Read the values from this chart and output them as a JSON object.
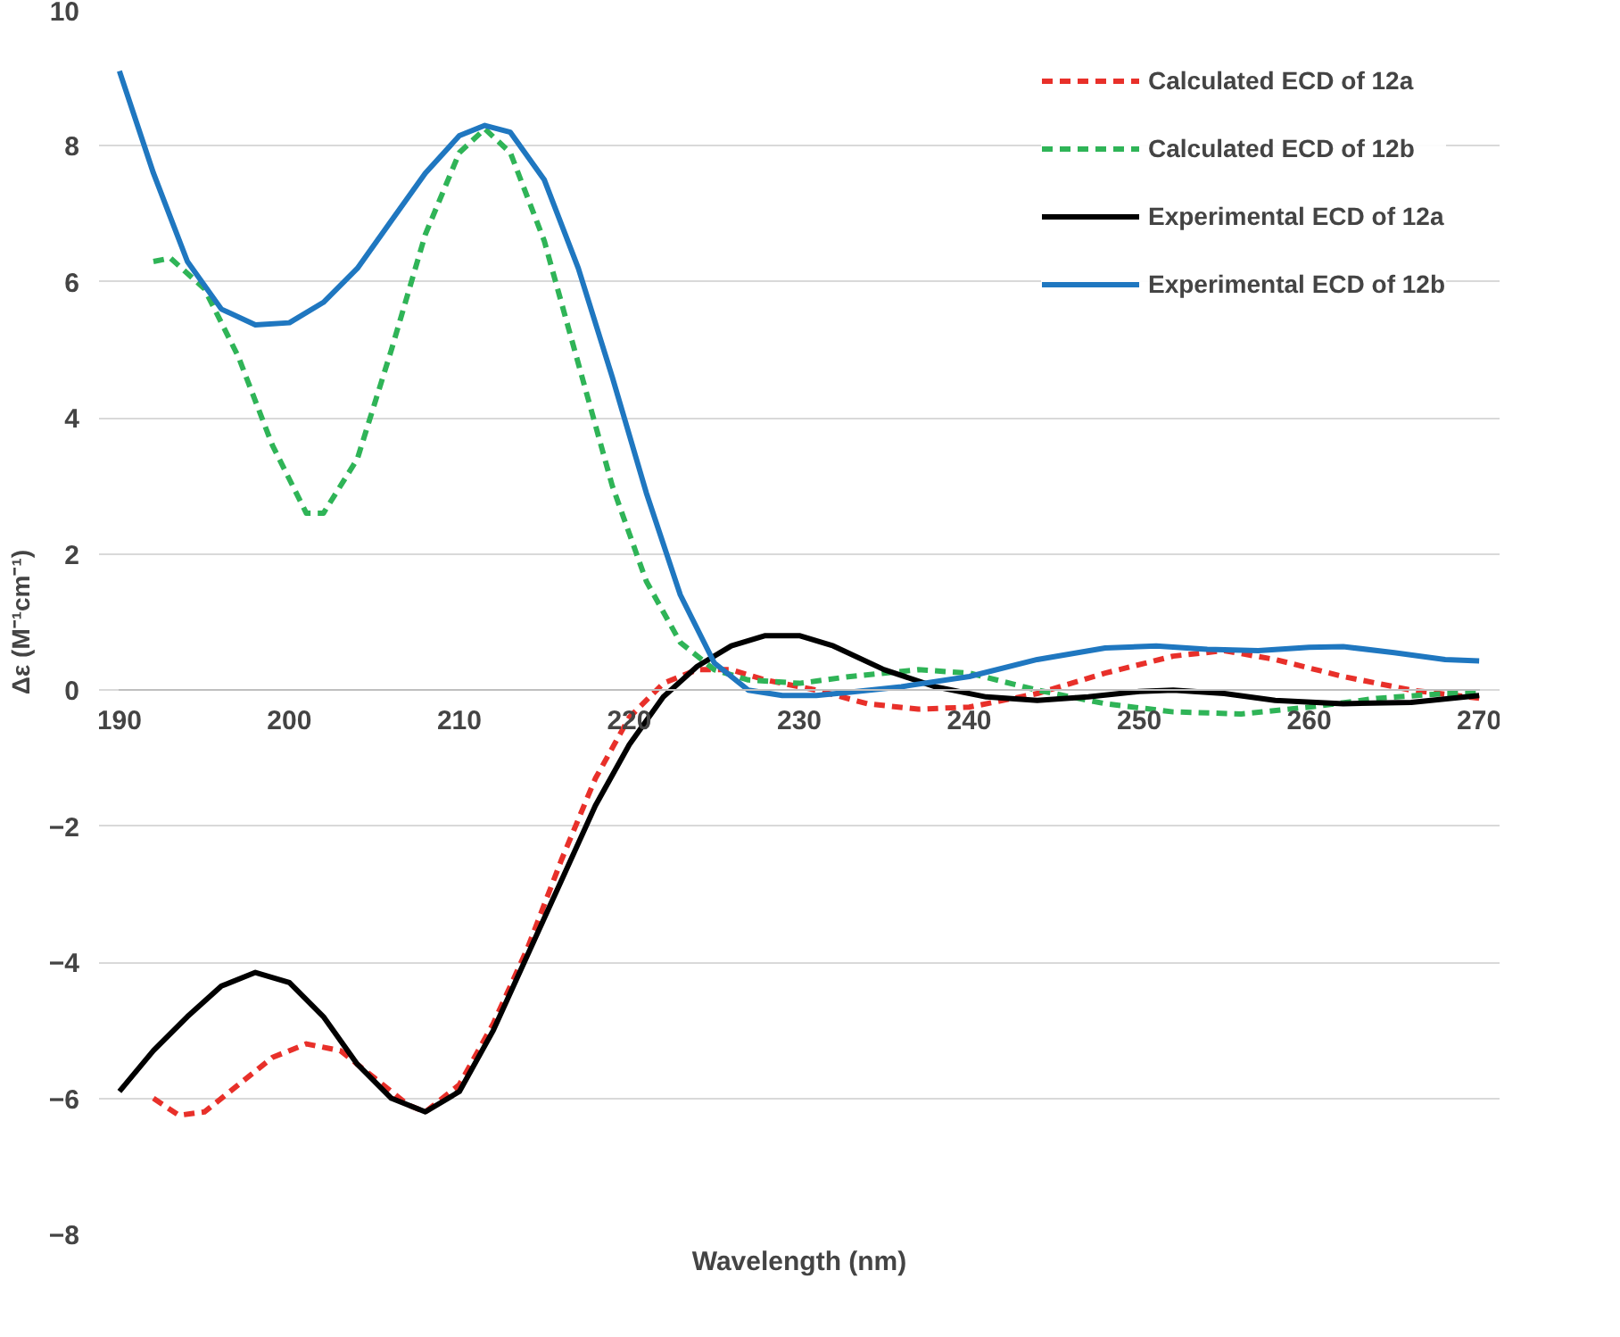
{
  "chart_data": {
    "type": "line",
    "xlabel": "Wavelength (nm)",
    "ylabel": "Δε (M⁻¹cm⁻¹)",
    "xlim": [
      190,
      270
    ],
    "xticks": [
      190,
      200,
      210,
      220,
      230,
      240,
      250,
      260,
      270
    ],
    "ylim": [
      -8,
      10
    ],
    "yticks": [
      -8,
      -6,
      -4,
      -2,
      0,
      2,
      4,
      6,
      8,
      10
    ],
    "grid": "y",
    "legend": "top right",
    "marker": "none",
    "series": [
      {
        "name": "Calculated ECD of 12a",
        "color": "#e8302a",
        "line_style": "dashed",
        "x": [
          192,
          193.5,
          195,
          197,
          199,
          201,
          203,
          205,
          207,
          208,
          210,
          212,
          214,
          216,
          218,
          220,
          222,
          224,
          226,
          228,
          231,
          234,
          237,
          240,
          244,
          248,
          252,
          255,
          258,
          262,
          266,
          270
        ],
        "values": [
          -6.0,
          -6.25,
          -6.2,
          -5.8,
          -5.4,
          -5.2,
          -5.3,
          -5.7,
          -6.1,
          -6.2,
          -5.8,
          -4.9,
          -3.8,
          -2.5,
          -1.3,
          -0.4,
          0.1,
          0.3,
          0.3,
          0.15,
          0.0,
          -0.2,
          -0.28,
          -0.25,
          -0.05,
          0.25,
          0.5,
          0.58,
          0.45,
          0.2,
          0.0,
          -0.12
        ]
      },
      {
        "name": "Calculated ECD of 12b",
        "color": "#2fb457",
        "line_style": "dashed",
        "x": [
          192,
          193,
          195,
          197,
          199,
          201,
          202,
          204,
          206,
          208,
          210,
          211.5,
          213,
          215,
          217,
          219,
          221,
          223,
          225,
          227,
          230,
          233,
          237,
          240,
          244,
          248,
          252,
          256,
          260,
          264,
          268,
          270
        ],
        "values": [
          6.3,
          6.35,
          5.9,
          4.9,
          3.6,
          2.6,
          2.6,
          3.4,
          5.0,
          6.7,
          7.9,
          8.25,
          7.9,
          6.6,
          4.8,
          3.0,
          1.6,
          0.7,
          0.3,
          0.15,
          0.1,
          0.2,
          0.3,
          0.25,
          0.0,
          -0.2,
          -0.32,
          -0.35,
          -0.25,
          -0.12,
          -0.05,
          -0.05
        ]
      },
      {
        "name": "Experimental ECD of 12a",
        "color": "#000000",
        "line_style": "solid",
        "x": [
          190,
          192,
          194,
          196,
          198,
          200,
          202,
          204,
          206,
          208,
          210,
          212,
          214,
          216,
          218,
          220,
          222,
          224,
          226,
          228,
          230,
          232,
          235,
          238,
          241,
          244,
          247,
          250,
          252,
          255,
          258,
          262,
          266,
          270
        ],
        "values": [
          -5.9,
          -5.3,
          -4.8,
          -4.35,
          -4.15,
          -4.3,
          -4.8,
          -5.5,
          -6.0,
          -6.2,
          -5.9,
          -5.0,
          -3.9,
          -2.8,
          -1.7,
          -0.8,
          -0.1,
          0.35,
          0.65,
          0.8,
          0.8,
          0.65,
          0.3,
          0.05,
          -0.1,
          -0.15,
          -0.1,
          -0.02,
          0.0,
          -0.05,
          -0.15,
          -0.2,
          -0.18,
          -0.08
        ]
      },
      {
        "name": "Experimental ECD of 12b",
        "color": "#1f77c0",
        "line_style": "solid",
        "x": [
          190,
          192,
          194,
          196,
          198,
          200,
          202,
          204,
          206,
          208,
          210,
          211.5,
          213,
          215,
          217,
          219,
          221,
          223,
          225,
          227,
          229,
          231,
          233,
          236,
          240,
          244,
          248,
          251,
          254,
          257,
          260,
          262,
          265,
          268,
          270
        ],
        "values": [
          9.1,
          7.6,
          6.3,
          5.6,
          5.37,
          5.4,
          5.7,
          6.2,
          6.9,
          7.6,
          8.15,
          8.3,
          8.2,
          7.5,
          6.2,
          4.6,
          2.9,
          1.4,
          0.4,
          0.0,
          -0.08,
          -0.08,
          -0.03,
          0.05,
          0.2,
          0.45,
          0.62,
          0.65,
          0.6,
          0.58,
          0.63,
          0.64,
          0.55,
          0.45,
          0.43
        ]
      }
    ]
  }
}
